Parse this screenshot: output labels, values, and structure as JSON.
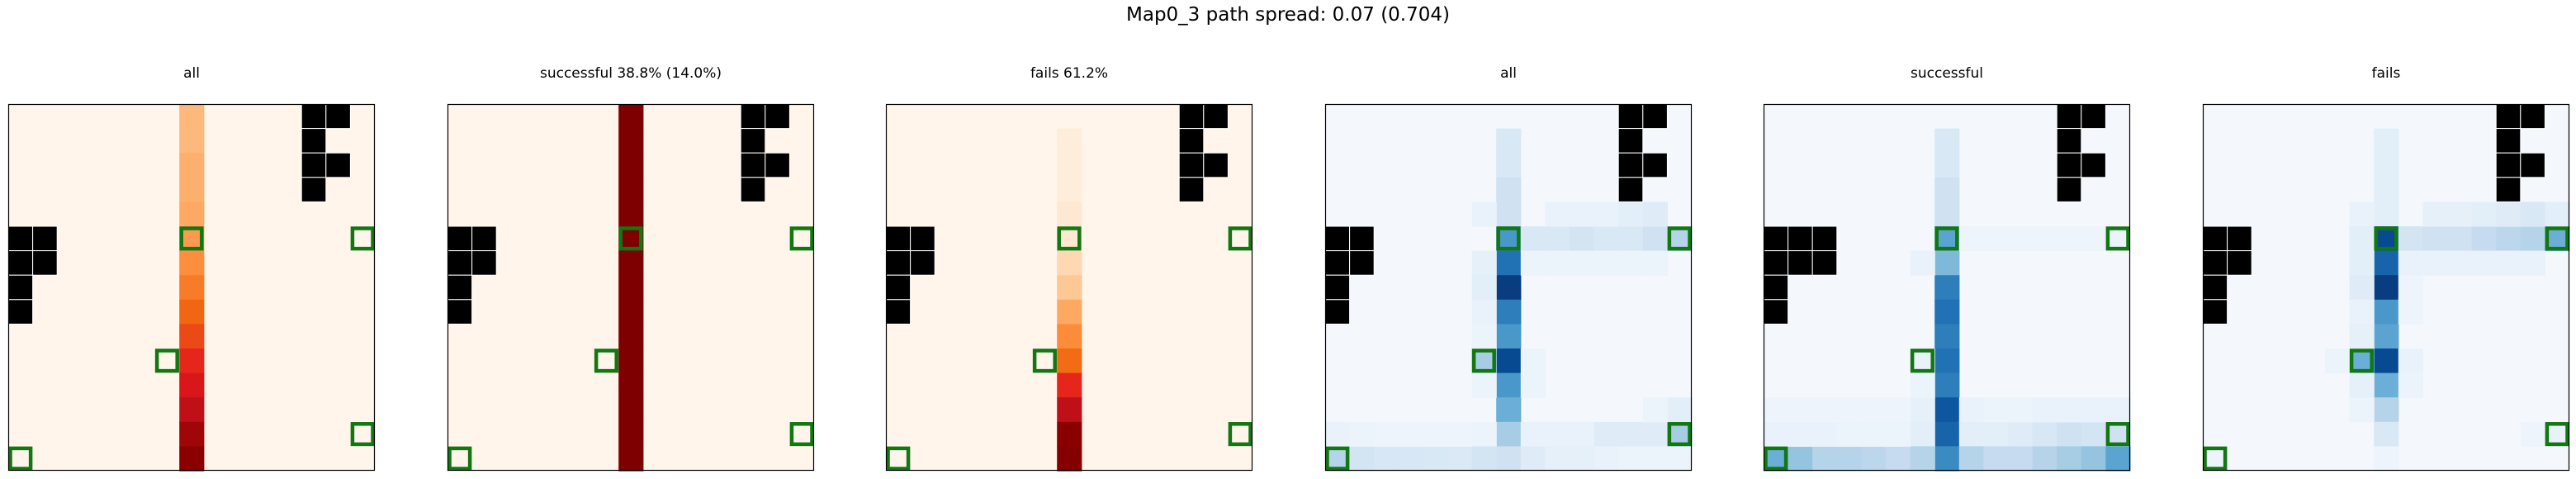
{
  "figure": {
    "title": "Map0_3 path spread: 0.07 (0.704)"
  },
  "colors": {
    "obstacle": "#000000",
    "marker": "#117711",
    "reds_scale": [
      "#fff5eb",
      "#fee6ce",
      "#fdd0a2",
      "#fdae6b",
      "#fd8d3c",
      "#f16913",
      "#e31a1c",
      "#c0101a",
      "#8b0000",
      "#7f0000"
    ],
    "blues_scale": [
      "#f4f8fd",
      "#deebf7",
      "#c6dbef",
      "#9ecae1",
      "#6baed6",
      "#4292c6",
      "#2171b5",
      "#08519c",
      "#08306b"
    ]
  },
  "chart_data": [
    {
      "type": "heatmap",
      "title": "all",
      "colormap": "reds",
      "grid_size": [
        15,
        15
      ],
      "obstacles": [
        [
          0,
          12
        ],
        [
          0,
          13
        ],
        [
          1,
          12
        ],
        [
          2,
          12
        ],
        [
          2,
          13
        ],
        [
          3,
          12
        ],
        [
          5,
          0
        ],
        [
          5,
          1
        ],
        [
          6,
          0
        ],
        [
          6,
          1
        ],
        [
          7,
          0
        ],
        [
          8,
          0
        ]
      ],
      "markers": [
        [
          5,
          7
        ],
        [
          5,
          14
        ],
        [
          10,
          6
        ],
        [
          13,
          14
        ],
        [
          14,
          0
        ]
      ],
      "heat_column": 7,
      "values": [
        0.3,
        0.3,
        0.33,
        0.33,
        0.35,
        0.4,
        0.44,
        0.5,
        0.56,
        0.6,
        0.65,
        0.7,
        0.78,
        0.85,
        0.9
      ]
    },
    {
      "type": "heatmap",
      "title": "successful 38.8% (14.0%)",
      "colormap": "reds",
      "grid_size": [
        15,
        15
      ],
      "obstacles": [
        [
          0,
          12
        ],
        [
          0,
          13
        ],
        [
          1,
          12
        ],
        [
          2,
          12
        ],
        [
          2,
          13
        ],
        [
          3,
          12
        ],
        [
          5,
          0
        ],
        [
          5,
          1
        ],
        [
          6,
          0
        ],
        [
          6,
          1
        ],
        [
          7,
          0
        ],
        [
          8,
          0
        ]
      ],
      "markers": [
        [
          5,
          7
        ],
        [
          5,
          14
        ],
        [
          10,
          6
        ],
        [
          13,
          14
        ],
        [
          14,
          0
        ]
      ],
      "heat_column": 7,
      "values": [
        1,
        1,
        1,
        1,
        1,
        1,
        1,
        1,
        1,
        1,
        1,
        1,
        1,
        1,
        1
      ]
    },
    {
      "type": "heatmap",
      "title": "fails 61.2%",
      "colormap": "reds",
      "grid_size": [
        15,
        15
      ],
      "obstacles": [
        [
          0,
          12
        ],
        [
          0,
          13
        ],
        [
          1,
          12
        ],
        [
          2,
          12
        ],
        [
          2,
          13
        ],
        [
          3,
          12
        ],
        [
          5,
          0
        ],
        [
          5,
          1
        ],
        [
          6,
          0
        ],
        [
          6,
          1
        ],
        [
          7,
          0
        ],
        [
          8,
          0
        ]
      ],
      "markers": [
        [
          5,
          7
        ],
        [
          5,
          14
        ],
        [
          10,
          6
        ],
        [
          13,
          14
        ],
        [
          14,
          0
        ]
      ],
      "heat_column": 7,
      "values": [
        0.0,
        0.06,
        0.06,
        0.06,
        0.1,
        0.1,
        0.18,
        0.25,
        0.35,
        0.45,
        0.55,
        0.65,
        0.78,
        0.9,
        0.95
      ]
    },
    {
      "type": "heatmap",
      "title": "all",
      "colormap": "blues",
      "grid_size": [
        15,
        15
      ],
      "obstacles": [
        [
          0,
          12
        ],
        [
          0,
          13
        ],
        [
          1,
          12
        ],
        [
          2,
          12
        ],
        [
          2,
          13
        ],
        [
          3,
          12
        ],
        [
          5,
          0
        ],
        [
          5,
          1
        ],
        [
          6,
          0
        ],
        [
          6,
          1
        ],
        [
          7,
          0
        ],
        [
          8,
          0
        ]
      ],
      "markers": [
        [
          5,
          7
        ],
        [
          5,
          14
        ],
        [
          10,
          6
        ],
        [
          13,
          14
        ],
        [
          14,
          0
        ]
      ],
      "cells": [
        [
          1,
          7,
          0.15
        ],
        [
          2,
          7,
          0.15
        ],
        [
          3,
          7,
          0.2
        ],
        [
          4,
          7,
          0.2
        ],
        [
          5,
          7,
          0.6
        ],
        [
          6,
          7,
          0.75
        ],
        [
          7,
          7,
          0.95
        ],
        [
          8,
          7,
          0.7
        ],
        [
          9,
          7,
          0.6
        ],
        [
          10,
          7,
          0.9
        ],
        [
          11,
          7,
          0.6
        ],
        [
          12,
          7,
          0.5
        ],
        [
          13,
          7,
          0.35
        ],
        [
          14,
          7,
          0.2
        ],
        [
          4,
          6,
          0.06
        ],
        [
          6,
          6,
          0.08
        ],
        [
          7,
          6,
          0.1
        ],
        [
          8,
          6,
          0.06
        ],
        [
          5,
          8,
          0.15
        ],
        [
          5,
          9,
          0.15
        ],
        [
          5,
          10,
          0.18
        ],
        [
          5,
          11,
          0.15
        ],
        [
          5,
          12,
          0.15
        ],
        [
          5,
          13,
          0.2
        ],
        [
          5,
          14,
          0.3
        ],
        [
          4,
          9,
          0.06
        ],
        [
          4,
          10,
          0.06
        ],
        [
          4,
          11,
          0.06
        ],
        [
          4,
          12,
          0.1
        ],
        [
          4,
          13,
          0.12
        ],
        [
          6,
          8,
          0.05
        ],
        [
          6,
          9,
          0.05
        ],
        [
          6,
          10,
          0.05
        ],
        [
          6,
          11,
          0.05
        ],
        [
          6,
          12,
          0.05
        ],
        [
          6,
          13,
          0.05
        ],
        [
          10,
          6,
          0.35
        ],
        [
          10,
          8,
          0.05
        ],
        [
          9,
          6,
          0.05
        ],
        [
          11,
          6,
          0.05
        ],
        [
          11,
          8,
          0.05
        ],
        [
          13,
          6,
          0.05
        ],
        [
          13,
          8,
          0.06
        ],
        [
          13,
          9,
          0.06
        ],
        [
          13,
          10,
          0.06
        ],
        [
          13,
          11,
          0.12
        ],
        [
          13,
          12,
          0.12
        ],
        [
          13,
          13,
          0.12
        ],
        [
          13,
          14,
          0.35
        ],
        [
          12,
          14,
          0.1
        ],
        [
          12,
          13,
          0.05
        ],
        [
          14,
          0,
          0.3
        ],
        [
          14,
          1,
          0.18
        ],
        [
          14,
          2,
          0.16
        ],
        [
          14,
          3,
          0.16
        ],
        [
          14,
          4,
          0.15
        ],
        [
          14,
          5,
          0.14
        ],
        [
          14,
          6,
          0.18
        ],
        [
          14,
          8,
          0.12
        ],
        [
          14,
          9,
          0.08
        ],
        [
          14,
          10,
          0.08
        ],
        [
          14,
          11,
          0.06
        ],
        [
          14,
          12,
          0.05
        ],
        [
          14,
          13,
          0.05
        ],
        [
          14,
          14,
          0.05
        ],
        [
          13,
          0,
          0.06
        ],
        [
          13,
          1,
          0.05
        ],
        [
          13,
          2,
          0.04
        ],
        [
          13,
          3,
          0.04
        ],
        [
          13,
          4,
          0.04
        ],
        [
          13,
          5,
          0.04
        ]
      ]
    },
    {
      "type": "heatmap",
      "title": "successful",
      "colormap": "blues",
      "grid_size": [
        15,
        15
      ],
      "obstacles": [
        [
          0,
          12
        ],
        [
          0,
          13
        ],
        [
          1,
          12
        ],
        [
          2,
          12
        ],
        [
          2,
          13
        ],
        [
          3,
          12
        ],
        [
          5,
          0
        ],
        [
          5,
          1
        ],
        [
          5,
          2
        ],
        [
          6,
          0
        ],
        [
          6,
          1
        ],
        [
          6,
          2
        ],
        [
          7,
          0
        ],
        [
          8,
          0
        ]
      ],
      "markers": [
        [
          5,
          7
        ],
        [
          5,
          14
        ],
        [
          10,
          6
        ],
        [
          13,
          14
        ],
        [
          14,
          0
        ]
      ],
      "cells": [
        [
          1,
          7,
          0.15
        ],
        [
          2,
          7,
          0.15
        ],
        [
          3,
          7,
          0.2
        ],
        [
          4,
          7,
          0.2
        ],
        [
          5,
          7,
          0.55
        ],
        [
          6,
          7,
          0.45
        ],
        [
          7,
          7,
          0.7
        ],
        [
          8,
          7,
          0.75
        ],
        [
          9,
          7,
          0.7
        ],
        [
          10,
          7,
          0.75
        ],
        [
          11,
          7,
          0.7
        ],
        [
          12,
          7,
          0.85
        ],
        [
          13,
          7,
          0.8
        ],
        [
          14,
          7,
          0.65
        ],
        [
          6,
          6,
          0.06
        ],
        [
          10,
          6,
          0.06
        ],
        [
          12,
          6,
          0.08
        ],
        [
          13,
          6,
          0.1
        ],
        [
          11,
          6,
          0.05
        ],
        [
          5,
          8,
          0.04
        ],
        [
          5,
          9,
          0.04
        ],
        [
          5,
          10,
          0.04
        ],
        [
          5,
          11,
          0.04
        ],
        [
          5,
          12,
          0.04
        ],
        [
          5,
          13,
          0.04
        ],
        [
          5,
          14,
          0.05
        ],
        [
          12,
          8,
          0.06
        ],
        [
          13,
          8,
          0.1
        ],
        [
          13,
          9,
          0.1
        ],
        [
          13,
          10,
          0.12
        ],
        [
          13,
          11,
          0.16
        ],
        [
          13,
          12,
          0.2
        ],
        [
          13,
          13,
          0.18
        ],
        [
          13,
          14,
          0.2
        ],
        [
          12,
          9,
          0.05
        ],
        [
          12,
          10,
          0.05
        ],
        [
          12,
          11,
          0.06
        ],
        [
          12,
          12,
          0.06
        ],
        [
          12,
          13,
          0.06
        ],
        [
          12,
          14,
          0.06
        ],
        [
          14,
          0,
          0.5
        ],
        [
          14,
          1,
          0.4
        ],
        [
          14,
          2,
          0.3
        ],
        [
          14,
          3,
          0.3
        ],
        [
          14,
          4,
          0.28
        ],
        [
          14,
          5,
          0.25
        ],
        [
          14,
          6,
          0.3
        ],
        [
          14,
          8,
          0.3
        ],
        [
          14,
          9,
          0.25
        ],
        [
          14,
          10,
          0.25
        ],
        [
          14,
          11,
          0.3
        ],
        [
          14,
          12,
          0.35
        ],
        [
          14,
          13,
          0.4
        ],
        [
          14,
          14,
          0.55
        ],
        [
          13,
          0,
          0.06
        ],
        [
          13,
          1,
          0.06
        ],
        [
          13,
          2,
          0.06
        ],
        [
          13,
          3,
          0.05
        ],
        [
          13,
          4,
          0.05
        ],
        [
          13,
          5,
          0.05
        ],
        [
          12,
          0,
          0.04
        ],
        [
          12,
          1,
          0.04
        ],
        [
          12,
          2,
          0.04
        ],
        [
          12,
          3,
          0.04
        ],
        [
          12,
          4,
          0.04
        ],
        [
          12,
          5,
          0.04
        ]
      ]
    },
    {
      "type": "heatmap",
      "title": "fails",
      "colormap": "blues",
      "grid_size": [
        15,
        15
      ],
      "obstacles": [
        [
          0,
          12
        ],
        [
          0,
          13
        ],
        [
          1,
          12
        ],
        [
          2,
          12
        ],
        [
          2,
          13
        ],
        [
          3,
          12
        ],
        [
          5,
          0
        ],
        [
          5,
          1
        ],
        [
          6,
          0
        ],
        [
          6,
          1
        ],
        [
          7,
          0
        ],
        [
          8,
          0
        ]
      ],
      "markers": [
        [
          5,
          7
        ],
        [
          5,
          14
        ],
        [
          10,
          6
        ],
        [
          13,
          14
        ],
        [
          14,
          0
        ]
      ],
      "cells": [
        [
          1,
          7,
          0.1
        ],
        [
          2,
          7,
          0.1
        ],
        [
          3,
          7,
          0.1
        ],
        [
          4,
          7,
          0.1
        ],
        [
          5,
          7,
          0.9
        ],
        [
          6,
          7,
          0.8
        ],
        [
          7,
          7,
          0.95
        ],
        [
          8,
          7,
          0.6
        ],
        [
          9,
          7,
          0.55
        ],
        [
          10,
          7,
          0.9
        ],
        [
          11,
          7,
          0.5
        ],
        [
          12,
          7,
          0.3
        ],
        [
          13,
          7,
          0.15
        ],
        [
          14,
          7,
          0.04
        ],
        [
          4,
          6,
          0.06
        ],
        [
          5,
          6,
          0.1
        ],
        [
          6,
          6,
          0.1
        ],
        [
          7,
          6,
          0.12
        ],
        [
          8,
          6,
          0.06
        ],
        [
          5,
          8,
          0.18
        ],
        [
          5,
          9,
          0.2
        ],
        [
          5,
          10,
          0.2
        ],
        [
          5,
          11,
          0.25
        ],
        [
          5,
          12,
          0.28
        ],
        [
          5,
          13,
          0.3
        ],
        [
          5,
          14,
          0.5
        ],
        [
          4,
          9,
          0.08
        ],
        [
          4,
          10,
          0.08
        ],
        [
          4,
          11,
          0.1
        ],
        [
          4,
          12,
          0.12
        ],
        [
          4,
          13,
          0.15
        ],
        [
          4,
          14,
          0.1
        ],
        [
          6,
          8,
          0.06
        ],
        [
          6,
          9,
          0.06
        ],
        [
          6,
          10,
          0.06
        ],
        [
          6,
          11,
          0.06
        ],
        [
          6,
          12,
          0.06
        ],
        [
          6,
          13,
          0.06
        ],
        [
          7,
          8,
          0.04
        ],
        [
          8,
          8,
          0.04
        ],
        [
          10,
          6,
          0.5
        ],
        [
          9,
          6,
          0.08
        ],
        [
          11,
          6,
          0.08
        ],
        [
          10,
          5,
          0.05
        ],
        [
          10,
          8,
          0.06
        ],
        [
          11,
          8,
          0.05
        ],
        [
          12,
          6,
          0.05
        ],
        [
          13,
          14,
          0.06
        ],
        [
          13,
          13,
          0.04
        ],
        [
          14,
          0,
          0.04
        ]
      ]
    }
  ]
}
